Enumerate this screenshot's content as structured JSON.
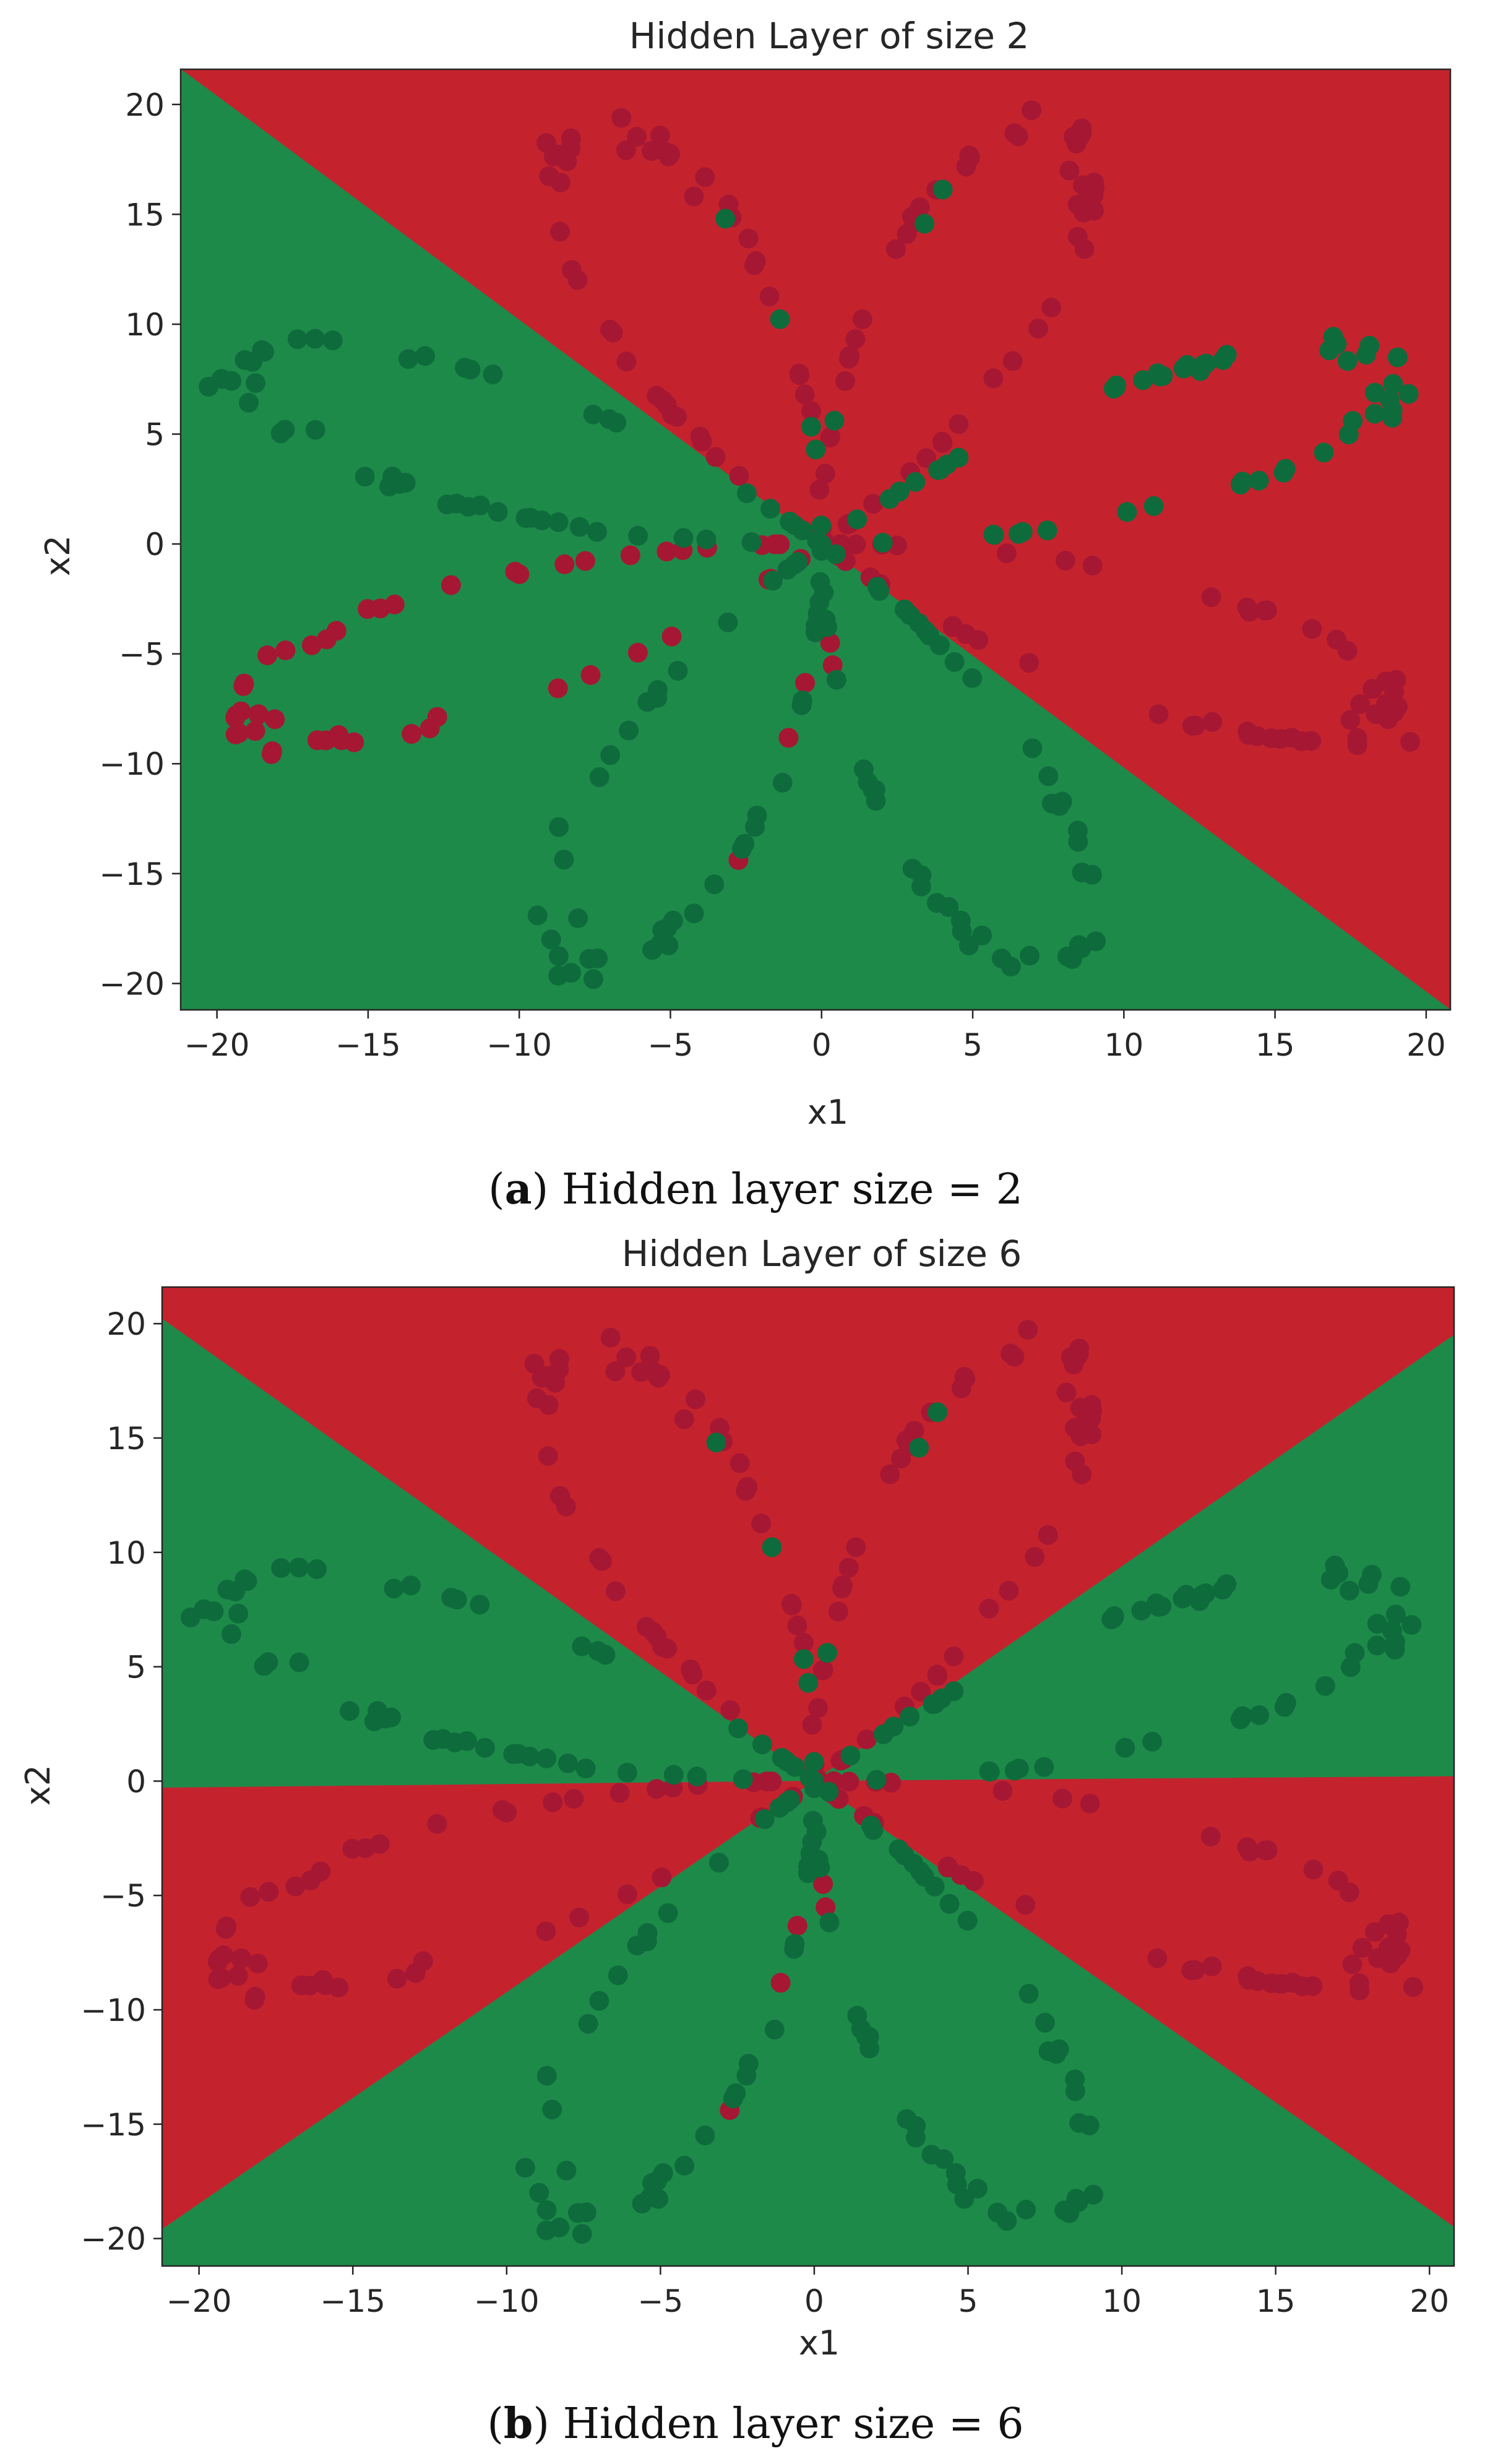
{
  "colors": {
    "region_red": "#c4232e",
    "region_green": "#1e8a4a",
    "point_red": "#a61733",
    "point_green": "#0e6b3c",
    "axis": "#262626"
  },
  "chart_data": [
    {
      "type": "scatter",
      "title": "Hidden Layer of size 2",
      "xlabel": "x1",
      "ylabel": "x2",
      "xlim": [
        -21.2,
        20.8
      ],
      "ylim": [
        -21.2,
        21.6
      ],
      "xticks": [
        -20,
        -15,
        -10,
        -5,
        0,
        5,
        10,
        15,
        20
      ],
      "yticks": [
        -20,
        -15,
        -10,
        -5,
        0,
        5,
        10,
        15,
        20
      ],
      "xtick_labels": [
        "−20",
        "−15",
        "−10",
        "−5",
        "0",
        "5",
        "10",
        "15",
        "20"
      ],
      "ytick_labels": [
        "−20",
        "−15",
        "−10",
        "−5",
        "0",
        "5",
        "10",
        "15",
        "20"
      ],
      "dataset": "planar flower, 8 petals, radius ≈ 20",
      "decision_regions": [
        {
          "class": "red",
          "polygon": [
            [
              -21.2,
              21.6
            ],
            [
              20.8,
              21.6
            ],
            [
              20.8,
              -21.2
            ]
          ]
        },
        {
          "class": "green",
          "polygon": [
            [
              -21.2,
              21.6
            ],
            [
              20.8,
              -21.2
            ],
            [
              -21.2,
              -21.2
            ]
          ]
        }
      ],
      "caption": {
        "label": "a",
        "text": "Hidden layer size = 2"
      }
    },
    {
      "type": "scatter",
      "title": "Hidden Layer of size 6",
      "xlabel": "x1",
      "ylabel": "x2",
      "xlim": [
        -21.2,
        20.8
      ],
      "ylim": [
        -21.2,
        21.6
      ],
      "xticks": [
        -20,
        -15,
        -10,
        -5,
        0,
        5,
        10,
        15,
        20
      ],
      "yticks": [
        -20,
        -15,
        -10,
        -5,
        0,
        5,
        10,
        15,
        20
      ],
      "xtick_labels": [
        "−20",
        "−15",
        "−10",
        "−5",
        "0",
        "5",
        "10",
        "15",
        "20"
      ],
      "ytick_labels": [
        "−20",
        "−15",
        "−10",
        "−5",
        "0",
        "5",
        "10",
        "15",
        "20"
      ],
      "dataset": "planar flower, 8 petals, radius ≈ 20",
      "decision_regions": [
        {
          "class": "red",
          "polygon": [
            [
              -21.2,
              21.6
            ],
            [
              20.8,
              21.6
            ],
            [
              20.8,
              19.5
            ],
            [
              0,
              0
            ],
            [
              -21.2,
              20.2
            ]
          ]
        },
        {
          "class": "green",
          "polygon": [
            [
              -21.2,
              20.2
            ],
            [
              0,
              0
            ],
            [
              -21.2,
              -0.3
            ]
          ]
        },
        {
          "class": "green",
          "polygon": [
            [
              20.8,
              19.5
            ],
            [
              20.8,
              0.2
            ],
            [
              0,
              0
            ]
          ]
        },
        {
          "class": "red",
          "polygon": [
            [
              -21.2,
              -0.3
            ],
            [
              0,
              0
            ],
            [
              -21.2,
              -19.6
            ]
          ]
        },
        {
          "class": "red",
          "polygon": [
            [
              20.8,
              0.2
            ],
            [
              20.8,
              -19.5
            ],
            [
              0,
              0
            ]
          ]
        },
        {
          "class": "green",
          "polygon": [
            [
              -21.2,
              -19.6
            ],
            [
              0,
              0
            ],
            [
              20.8,
              -19.5
            ],
            [
              20.8,
              -21.2
            ],
            [
              -21.2,
              -21.2
            ]
          ]
        }
      ],
      "caption": {
        "label": "b",
        "text": "Hidden layer size = 6"
      }
    }
  ]
}
